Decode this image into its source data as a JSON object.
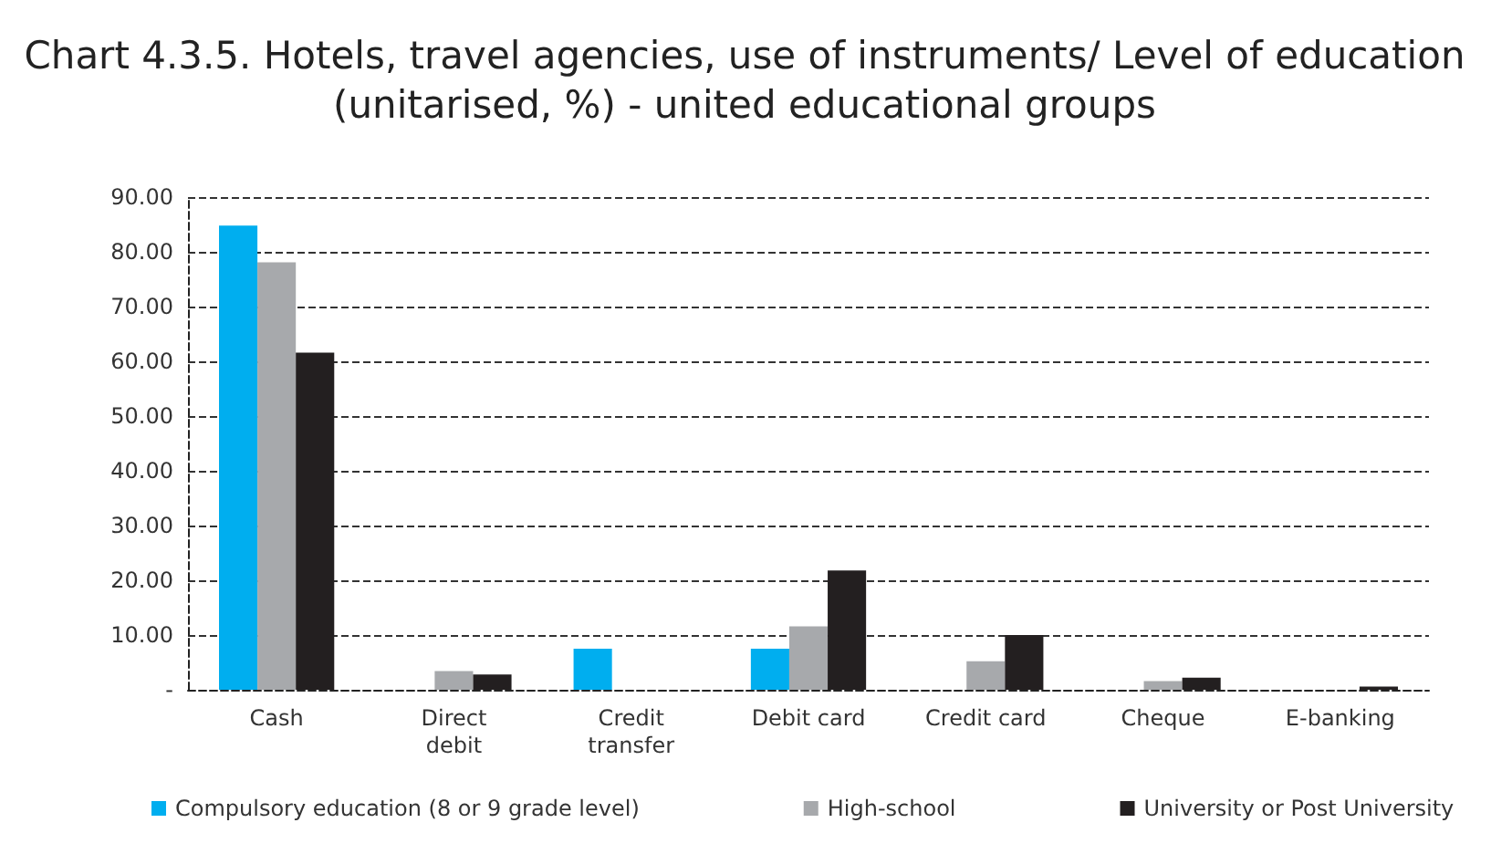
{
  "chart_data": {
    "type": "bar",
    "title": "Chart 4.3.5. Hotels, travel agencies, use of instruments/ Level of education\n(unitarised, %) - united educational groups",
    "categories": [
      "Cash",
      "Direct\ndebit",
      "Credit\ntransfer",
      "Debit card",
      "Credit card",
      "Cheque",
      "E-banking"
    ],
    "series": [
      {
        "name": "Compulsory education (8 or 9 grade level)",
        "color": "#00aeef",
        "values": [
          84.8,
          null,
          7.5,
          7.5,
          null,
          null,
          null
        ]
      },
      {
        "name": "High-school",
        "color": "#a7a9ac",
        "values": [
          78.1,
          3.4,
          null,
          11.6,
          5.2,
          1.6,
          null
        ]
      },
      {
        "name": "University or Post University",
        "color": "#231f20",
        "values": [
          61.6,
          2.8,
          null,
          21.8,
          10.0,
          2.2,
          0.6
        ]
      }
    ],
    "ylim": [
      0,
      90
    ],
    "yticks": [
      {
        "value": 0,
        "label": "-"
      },
      {
        "value": 10,
        "label": "10.00"
      },
      {
        "value": 20,
        "label": "20.00"
      },
      {
        "value": 30,
        "label": "30.00"
      },
      {
        "value": 40,
        "label": "40.00"
      },
      {
        "value": 50,
        "label": "50.00"
      },
      {
        "value": 60,
        "label": "60.00"
      },
      {
        "value": 70,
        "label": "70.00"
      },
      {
        "value": 80,
        "label": "80.00"
      },
      {
        "value": 90,
        "label": "90.00"
      }
    ],
    "grid": "y",
    "legend": "bottom"
  }
}
